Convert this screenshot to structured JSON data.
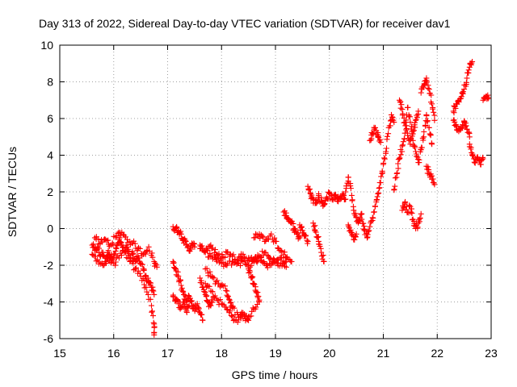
{
  "chart_data": {
    "type": "scatter",
    "title": "Day 313 of 2022, Sidereal Day-to-day VTEC variation (SDTVAR) for receiver dav1",
    "xlabel": "GPS time / hours",
    "ylabel": "SDTVAR / TECUs",
    "xlim": [
      15,
      23
    ],
    "ylim": [
      -6,
      10
    ],
    "xticks": [
      "15",
      "16",
      "17",
      "18",
      "19",
      "20",
      "21",
      "22",
      "23"
    ],
    "yticks": [
      "-6",
      "-4",
      "-2",
      "0",
      "2",
      "4",
      "6",
      "8",
      "10"
    ],
    "grid": true,
    "marker": "plus",
    "color": "#ff0000",
    "tracks": [
      {
        "points": [
          [
            15.6,
            -0.9
          ],
          [
            15.65,
            -1.2
          ],
          [
            15.7,
            -1.0
          ],
          [
            15.75,
            -1.5
          ],
          [
            15.8,
            -1.3
          ],
          [
            15.85,
            -1.8
          ],
          [
            15.9,
            -1.2
          ],
          [
            15.95,
            -1.6
          ],
          [
            16.0,
            -1.4
          ],
          [
            16.05,
            -1.1
          ],
          [
            16.1,
            -0.6
          ],
          [
            16.15,
            -0.9
          ],
          [
            16.2,
            -1.3
          ],
          [
            16.25,
            -1.0
          ],
          [
            16.3,
            -1.6
          ],
          [
            16.35,
            -1.4
          ],
          [
            16.4,
            -1.8
          ],
          [
            16.45,
            -1.5
          ],
          [
            16.5,
            -1.9
          ],
          [
            16.55,
            -2.2
          ],
          [
            16.6,
            -2.6
          ],
          [
            16.65,
            -2.9
          ],
          [
            16.7,
            -3.2
          ],
          [
            16.75,
            -3.6
          ]
        ]
      },
      {
        "points": [
          [
            15.6,
            -1.4
          ],
          [
            15.7,
            -1.7
          ],
          [
            15.8,
            -2.0
          ],
          [
            15.9,
            -1.7
          ],
          [
            16.0,
            -1.9
          ],
          [
            16.1,
            -1.6
          ],
          [
            16.2,
            -1.2
          ],
          [
            16.3,
            -1.8
          ],
          [
            16.4,
            -2.2
          ],
          [
            16.5,
            -2.6
          ],
          [
            16.6,
            -3.2
          ],
          [
            16.7,
            -4.2
          ],
          [
            16.75,
            -5.2
          ],
          [
            16.75,
            -5.8
          ]
        ]
      },
      {
        "points": [
          [
            15.65,
            -0.5
          ],
          [
            15.75,
            -0.8
          ],
          [
            15.85,
            -0.6
          ],
          [
            15.95,
            -0.9
          ],
          [
            16.05,
            -0.4
          ],
          [
            16.15,
            -0.2
          ],
          [
            16.25,
            -0.6
          ],
          [
            16.35,
            -0.8
          ],
          [
            16.45,
            -1.1
          ],
          [
            16.55,
            -1.4
          ],
          [
            16.65,
            -1.0
          ],
          [
            16.75,
            -1.8
          ],
          [
            16.8,
            -2.1
          ]
        ]
      },
      {
        "points": [
          [
            17.1,
            -1.8
          ],
          [
            17.15,
            -2.2
          ],
          [
            17.2,
            -2.6
          ],
          [
            17.25,
            -3.1
          ],
          [
            17.3,
            -3.6
          ],
          [
            17.35,
            -4.0
          ],
          [
            17.4,
            -3.7
          ],
          [
            17.45,
            -4.2
          ],
          [
            17.5,
            -4.4
          ],
          [
            17.55,
            -4.1
          ],
          [
            17.6,
            -4.6
          ],
          [
            17.65,
            -5.0
          ]
        ]
      },
      {
        "points": [
          [
            17.1,
            0.1
          ],
          [
            17.15,
            0.0
          ],
          [
            17.2,
            -0.1
          ],
          [
            17.25,
            -0.3
          ],
          [
            17.3,
            -0.6
          ],
          [
            17.35,
            -0.9
          ],
          [
            17.4,
            -1.2
          ],
          [
            17.45,
            -0.8
          ],
          [
            17.5,
            -1.0
          ]
        ]
      },
      {
        "points": [
          [
            17.1,
            -3.7
          ],
          [
            17.15,
            -3.9
          ],
          [
            17.2,
            -4.1
          ],
          [
            17.25,
            -4.3
          ],
          [
            17.3,
            -4.0
          ],
          [
            17.35,
            -4.5
          ],
          [
            17.4,
            -4.2
          ]
        ]
      },
      {
        "points": [
          [
            17.6,
            -1.1
          ],
          [
            17.7,
            -1.3
          ],
          [
            17.8,
            -1.5
          ],
          [
            17.9,
            -1.7
          ],
          [
            18.0,
            -1.9
          ],
          [
            18.1,
            -2.0
          ],
          [
            18.2,
            -1.8
          ],
          [
            18.3,
            -1.9
          ],
          [
            18.4,
            -1.8
          ],
          [
            18.5,
            -2.0
          ],
          [
            18.6,
            -1.8
          ],
          [
            18.7,
            -1.6
          ],
          [
            18.8,
            -1.9
          ],
          [
            18.9,
            -2.0
          ],
          [
            19.0,
            -1.8
          ],
          [
            19.1,
            -1.9
          ],
          [
            19.2,
            -2.1
          ]
        ]
      },
      {
        "points": [
          [
            17.6,
            -0.9
          ],
          [
            17.7,
            -1.2
          ],
          [
            17.8,
            -0.9
          ],
          [
            17.9,
            -1.4
          ],
          [
            18.0,
            -1.6
          ],
          [
            18.1,
            -1.3
          ],
          [
            18.2,
            -1.5
          ],
          [
            18.3,
            -1.7
          ],
          [
            18.4,
            -1.4
          ],
          [
            18.5,
            -1.6
          ],
          [
            18.6,
            -1.7
          ],
          [
            18.7,
            -1.5
          ],
          [
            18.8,
            -1.3
          ],
          [
            18.9,
            -1.6
          ],
          [
            19.0,
            -1.9
          ],
          [
            19.1,
            -1.6
          ],
          [
            19.2,
            -1.8
          ]
        ]
      },
      {
        "points": [
          [
            17.7,
            -2.2
          ],
          [
            17.8,
            -2.6
          ],
          [
            17.9,
            -2.9
          ],
          [
            18.0,
            -3.1
          ],
          [
            18.1,
            -3.4
          ],
          [
            18.15,
            -3.9
          ],
          [
            18.2,
            -4.3
          ],
          [
            18.3,
            -4.7
          ],
          [
            18.4,
            -4.9
          ],
          [
            18.5,
            -4.8
          ],
          [
            18.6,
            -4.4
          ],
          [
            18.7,
            -4.0
          ]
        ]
      },
      {
        "points": [
          [
            17.7,
            -3.0
          ],
          [
            17.8,
            -3.4
          ],
          [
            17.9,
            -3.8
          ],
          [
            18.0,
            -4.1
          ],
          [
            18.1,
            -4.4
          ],
          [
            18.2,
            -4.8
          ],
          [
            18.3,
            -5.1
          ],
          [
            18.4,
            -4.6
          ],
          [
            18.5,
            -5.0
          ]
        ]
      },
      {
        "points": [
          [
            17.6,
            -2.7
          ],
          [
            17.65,
            -3.2
          ],
          [
            17.7,
            -3.6
          ],
          [
            17.75,
            -4.0
          ],
          [
            17.8,
            -4.2
          ],
          [
            17.85,
            -3.7
          ]
        ]
      },
      {
        "points": [
          [
            18.6,
            -0.5
          ],
          [
            18.7,
            -0.3
          ],
          [
            18.8,
            -0.7
          ],
          [
            18.9,
            -0.4
          ],
          [
            19.0,
            -0.7
          ],
          [
            19.1,
            -1.2
          ],
          [
            19.2,
            -1.6
          ],
          [
            19.3,
            -1.8
          ]
        ]
      },
      {
        "points": [
          [
            18.5,
            -2.2
          ],
          [
            18.55,
            -2.6
          ],
          [
            18.6,
            -3.0
          ],
          [
            18.65,
            -3.5
          ],
          [
            18.7,
            -3.9
          ]
        ]
      },
      {
        "points": [
          [
            19.15,
            0.9
          ],
          [
            19.2,
            0.7
          ],
          [
            19.25,
            0.5
          ],
          [
            19.3,
            0.3
          ],
          [
            19.35,
            0.0
          ],
          [
            19.4,
            -0.3
          ],
          [
            19.45,
            -0.5
          ]
        ]
      },
      {
        "points": [
          [
            19.45,
            0.2
          ],
          [
            19.5,
            -0.1
          ],
          [
            19.55,
            -0.4
          ],
          [
            19.6,
            -0.7
          ]
        ]
      },
      {
        "points": [
          [
            19.7,
            0.3
          ],
          [
            19.75,
            -0.2
          ],
          [
            19.8,
            -0.7
          ],
          [
            19.85,
            -1.3
          ],
          [
            19.9,
            -1.8
          ]
        ]
      },
      {
        "points": [
          [
            19.6,
            2.3
          ],
          [
            19.65,
            1.9
          ],
          [
            19.7,
            1.6
          ],
          [
            19.75,
            1.4
          ],
          [
            19.8,
            1.8
          ],
          [
            19.85,
            1.5
          ],
          [
            19.9,
            1.3
          ],
          [
            19.95,
            1.7
          ],
          [
            20.0,
            1.9
          ],
          [
            20.05,
            1.6
          ],
          [
            20.1,
            1.8
          ],
          [
            20.15,
            1.5
          ],
          [
            20.2,
            1.7
          ],
          [
            20.25,
            1.9
          ],
          [
            20.3,
            1.6
          ]
        ]
      },
      {
        "points": [
          [
            20.3,
            2.0
          ],
          [
            20.35,
            2.8
          ],
          [
            20.4,
            2.2
          ],
          [
            20.45,
            1.0
          ],
          [
            20.5,
            0.6
          ],
          [
            20.55,
            0.4
          ],
          [
            20.6,
            0.8
          ]
        ]
      },
      {
        "points": [
          [
            20.35,
            0.2
          ],
          [
            20.4,
            -0.2
          ],
          [
            20.45,
            -0.6
          ],
          [
            20.5,
            -0.3
          ]
        ]
      },
      {
        "points": [
          [
            20.6,
            0.5
          ],
          [
            20.65,
            -0.1
          ],
          [
            20.7,
            -0.5
          ],
          [
            20.75,
            0.1
          ],
          [
            20.8,
            0.6
          ],
          [
            20.85,
            1.2
          ],
          [
            20.9,
            1.9
          ],
          [
            20.95,
            2.5
          ],
          [
            21.0,
            3.5
          ],
          [
            21.05,
            4.2
          ],
          [
            21.1,
            5.5
          ],
          [
            21.15,
            6.2
          ],
          [
            21.2,
            5.8
          ]
        ]
      },
      {
        "points": [
          [
            20.75,
            4.8
          ],
          [
            20.8,
            5.2
          ],
          [
            20.85,
            5.5
          ],
          [
            20.9,
            5.0
          ],
          [
            20.95,
            4.7
          ]
        ]
      },
      {
        "points": [
          [
            21.2,
            2.1
          ],
          [
            21.25,
            3.0
          ],
          [
            21.3,
            3.8
          ],
          [
            21.35,
            4.5
          ],
          [
            21.4,
            5.2
          ],
          [
            21.45,
            6.6
          ],
          [
            21.5,
            5.8
          ],
          [
            21.55,
            4.8
          ],
          [
            21.6,
            4.2
          ],
          [
            21.65,
            3.6
          ],
          [
            21.7,
            4.3
          ],
          [
            21.75,
            5.0
          ],
          [
            21.8,
            6.2
          ],
          [
            21.85,
            5.5
          ],
          [
            21.9,
            4.6
          ]
        ]
      },
      {
        "points": [
          [
            21.3,
            7.0
          ],
          [
            21.35,
            6.5
          ],
          [
            21.4,
            5.8
          ],
          [
            21.45,
            5.2
          ],
          [
            21.5,
            4.6
          ],
          [
            21.55,
            5.3
          ],
          [
            21.6,
            5.9
          ],
          [
            21.65,
            6.4
          ]
        ]
      },
      {
        "points": [
          [
            21.35,
            1.0
          ],
          [
            21.4,
            1.4
          ],
          [
            21.45,
            0.9
          ],
          [
            21.5,
            1.2
          ],
          [
            21.55,
            0.5
          ],
          [
            21.6,
            0.0
          ],
          [
            21.65,
            0.3
          ],
          [
            21.7,
            0.8
          ]
        ]
      },
      {
        "points": [
          [
            21.7,
            7.4
          ],
          [
            21.75,
            7.8
          ],
          [
            21.8,
            8.2
          ],
          [
            21.85,
            7.6
          ],
          [
            21.9,
            6.8
          ],
          [
            21.95,
            5.9
          ]
        ]
      },
      {
        "points": [
          [
            21.8,
            3.4
          ],
          [
            21.85,
            3.0
          ],
          [
            21.9,
            2.7
          ],
          [
            21.95,
            2.4
          ]
        ]
      },
      {
        "points": [
          [
            22.3,
            5.9
          ],
          [
            22.35,
            5.6
          ],
          [
            22.4,
            5.3
          ],
          [
            22.45,
            5.5
          ],
          [
            22.5,
            5.8
          ],
          [
            22.55,
            5.4
          ],
          [
            22.6,
            5.0
          ]
        ]
      },
      {
        "points": [
          [
            22.3,
            6.4
          ],
          [
            22.35,
            6.8
          ],
          [
            22.4,
            7.0
          ],
          [
            22.45,
            7.2
          ],
          [
            22.5,
            7.6
          ],
          [
            22.55,
            8.2
          ],
          [
            22.6,
            8.8
          ],
          [
            22.65,
            9.1
          ]
        ]
      },
      {
        "points": [
          [
            22.6,
            4.6
          ],
          [
            22.65,
            4.0
          ],
          [
            22.7,
            3.6
          ],
          [
            22.75,
            3.9
          ],
          [
            22.8,
            3.5
          ],
          [
            22.85,
            3.8
          ]
        ]
      },
      {
        "points": [
          [
            22.85,
            7.0
          ],
          [
            22.9,
            7.2
          ],
          [
            22.95,
            7.1
          ]
        ]
      }
    ]
  }
}
